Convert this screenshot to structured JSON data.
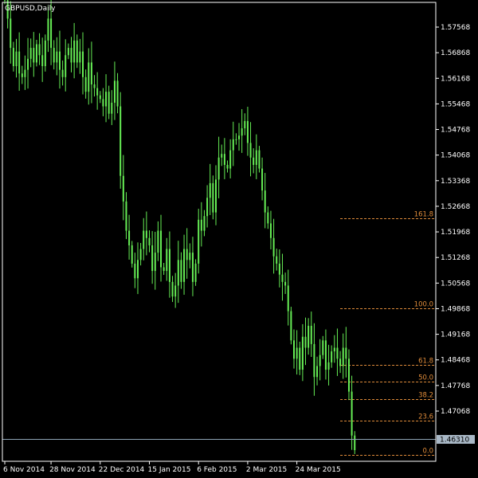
{
  "window": {
    "title": "GBPUSD,Daily"
  },
  "colors": {
    "background": "#000000",
    "frame": "#ffffff",
    "candle": "#66ee55",
    "fib": "#e08c3a",
    "current_line": "#8ea3b5",
    "price_tag_bg": "#a9b8c6"
  },
  "chart_data": {
    "type": "candlestick",
    "symbol": "GBPUSD",
    "timeframe": "Daily",
    "ylim": [
      1.4555,
      1.586
    ],
    "y_ticks": [
      "1.57568",
      "1.56868",
      "1.56168",
      "1.55468",
      "1.54768",
      "1.54068",
      "1.53368",
      "1.52668",
      "1.51968",
      "1.51268",
      "1.50568",
      "1.49868",
      "1.49168",
      "1.48468",
      "1.47768",
      "1.47068"
    ],
    "x_labels": [
      "6 Nov 2014",
      "28 Nov 2014",
      "22 Dec 2014",
      "15 Jan 2015",
      "6 Feb 2015",
      "2 Mar 2015",
      "24 Mar 2015"
    ],
    "x_label_bars": [
      0,
      16,
      33,
      50,
      67,
      84,
      101
    ],
    "current_price": "1.46310",
    "fibonacci": {
      "levels": [
        {
          "label": "161.8",
          "price": 1.5234
        },
        {
          "label": "100.0",
          "price": 1.4987
        },
        {
          "label": "61.8",
          "price": 1.4834
        },
        {
          "label": "50.0",
          "price": 1.4787
        },
        {
          "label": "38.2",
          "price": 1.474
        },
        {
          "label": "23.6",
          "price": 1.4681
        },
        {
          "label": "0.0",
          "price": 1.4587
        }
      ],
      "start_bar": 116
    },
    "closes": [
      1.583,
      1.578,
      1.57,
      1.565,
      1.569,
      1.563,
      1.562,
      1.564,
      1.567,
      1.57,
      1.566,
      1.571,
      1.568,
      1.565,
      1.572,
      1.578,
      1.57,
      1.566,
      1.569,
      1.564,
      1.562,
      1.568,
      1.57,
      1.566,
      1.572,
      1.566,
      1.569,
      1.562,
      1.558,
      1.566,
      1.56,
      1.559,
      1.557,
      1.556,
      1.554,
      1.558,
      1.552,
      1.555,
      1.561,
      1.554,
      1.535,
      1.528,
      1.52,
      1.516,
      1.511,
      1.507,
      1.512,
      1.515,
      1.52,
      1.518,
      1.516,
      1.509,
      1.514,
      1.52,
      1.51,
      1.509,
      1.515,
      1.506,
      1.502,
      1.505,
      1.512,
      1.506,
      1.515,
      1.512,
      1.514,
      1.506,
      1.511,
      1.523,
      1.52,
      1.524,
      1.529,
      1.533,
      1.525,
      1.534,
      1.54,
      1.541,
      1.538,
      1.537,
      1.542,
      1.545,
      1.545,
      1.546,
      1.548,
      1.55,
      1.544,
      1.54,
      1.538,
      1.542,
      1.537,
      1.531,
      1.525,
      1.522,
      1.518,
      1.513,
      1.511,
      1.508,
      1.506,
      1.505,
      1.498,
      1.49,
      1.485,
      1.488,
      1.482,
      1.491,
      1.488,
      1.494,
      1.489,
      1.48,
      1.483,
      1.486,
      1.49,
      1.482,
      1.484,
      1.487,
      1.488,
      1.485,
      1.483,
      1.488,
      1.485,
      1.476,
      1.464,
      1.46
    ]
  }
}
